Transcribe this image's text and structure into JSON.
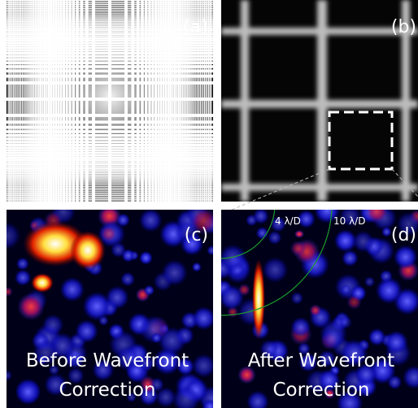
{
  "panels": [
    {
      "label": "(a)"
    },
    {
      "label": "(b)"
    },
    {
      "label": "(c)",
      "caption": [
        "Before Wavefront",
        "Correction"
      ]
    },
    {
      "label": "(d)",
      "caption": [
        "After Wavefront",
        "Correction"
      ],
      "annotations": [
        "4 λ/D",
        "10 λ/D"
      ]
    }
  ]
}
